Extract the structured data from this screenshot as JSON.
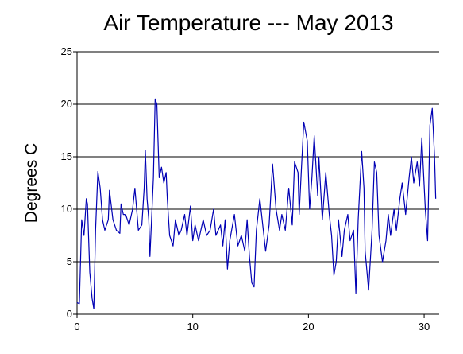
{
  "chart_data": {
    "type": "line",
    "title": "Air Temperature --- May 2013",
    "y_label": "Degrees C",
    "x": [
      0,
      0.2,
      0.4,
      0.6,
      0.8,
      0.9,
      1.1,
      1.3,
      1.45,
      1.6,
      1.8,
      2.0,
      2.2,
      2.4,
      2.7,
      2.8,
      3.1,
      3.4,
      3.7,
      3.8,
      4.0,
      4.2,
      4.5,
      4.8,
      5.0,
      5.3,
      5.6,
      5.8,
      5.9,
      6.05,
      6.2,
      6.3,
      6.4,
      6.6,
      6.75,
      6.9,
      7.1,
      7.3,
      7.5,
      7.7,
      7.8,
      8.0,
      8.3,
      8.5,
      8.8,
      9.0,
      9.3,
      9.5,
      9.8,
      10.0,
      10.2,
      10.5,
      10.9,
      11.2,
      11.5,
      11.8,
      12.0,
      12.4,
      12.6,
      12.8,
      13.0,
      13.2,
      13.6,
      13.9,
      14.2,
      14.5,
      14.7,
      14.9,
      15.1,
      15.3,
      15.5,
      15.8,
      16.1,
      16.3,
      16.6,
      16.9,
      17.2,
      17.5,
      17.7,
      18.0,
      18.3,
      18.6,
      18.8,
      19.1,
      19.2,
      19.4,
      19.6,
      19.9,
      20.1,
      20.3,
      20.5,
      20.8,
      20.9,
      21.2,
      21.5,
      21.8,
      22.0,
      22.2,
      22.4,
      22.6,
      22.9,
      23.1,
      23.4,
      23.6,
      23.9,
      24.1,
      24.3,
      24.6,
      24.8,
      24.9,
      25.2,
      25.5,
      25.7,
      25.9,
      26.1,
      26.4,
      26.7,
      26.9,
      27.1,
      27.4,
      27.6,
      27.9,
      28.1,
      28.4,
      28.7,
      28.9,
      29.1,
      29.4,
      29.6,
      29.8,
      30.1,
      30.3,
      30.5,
      30.7,
      30.9,
      31.0
    ],
    "series": [
      {
        "name": "Air Temperature",
        "color": "#0000b4",
        "values": [
          1.1,
          1.0,
          9.0,
          7.5,
          11.0,
          10.5,
          4.0,
          1.5,
          0.5,
          8.0,
          13.6,
          12.0,
          9.0,
          8.0,
          9.0,
          11.8,
          9.0,
          8.0,
          7.7,
          10.5,
          9.5,
          9.5,
          8.5,
          10.0,
          12.0,
          8.0,
          8.5,
          12.0,
          15.6,
          11.0,
          9.0,
          5.5,
          8.0,
          13.0,
          20.5,
          20.0,
          13.0,
          14.0,
          12.5,
          13.5,
          11.0,
          7.5,
          6.5,
          9.0,
          7.5,
          8.0,
          9.5,
          7.5,
          10.3,
          7.0,
          8.5,
          7.0,
          9.0,
          7.5,
          8.0,
          10.0,
          7.5,
          8.5,
          6.5,
          9.0,
          4.3,
          7.0,
          9.5,
          6.5,
          7.5,
          6.0,
          9.0,
          5.5,
          3.0,
          2.6,
          8.0,
          11.0,
          8.0,
          6.0,
          8.5,
          14.3,
          10.0,
          8.0,
          9.5,
          8.0,
          12.0,
          8.5,
          14.5,
          13.5,
          9.5,
          14.0,
          18.3,
          16.5,
          10.0,
          13.0,
          17.0,
          11.3,
          15.0,
          9.0,
          13.5,
          9.5,
          7.5,
          3.7,
          5.0,
          9.0,
          5.5,
          8.0,
          9.5,
          7.0,
          8.0,
          2.0,
          9.0,
          15.5,
          12.0,
          6.0,
          2.3,
          8.0,
          14.5,
          13.5,
          7.5,
          5.0,
          7.0,
          9.5,
          7.5,
          10.0,
          8.0,
          11.0,
          12.5,
          9.5,
          13.0,
          15.0,
          12.5,
          14.5,
          12.2,
          16.8,
          10.0,
          7.0,
          18.0,
          19.6,
          15.0,
          11.0
        ]
      }
    ],
    "xlim": [
      0,
      31.3
    ],
    "xticks": [
      0,
      10,
      20,
      30
    ],
    "ylim": [
      0,
      25
    ],
    "yticks": [
      0,
      5,
      10,
      15,
      20,
      25
    ],
    "grid": true
  }
}
